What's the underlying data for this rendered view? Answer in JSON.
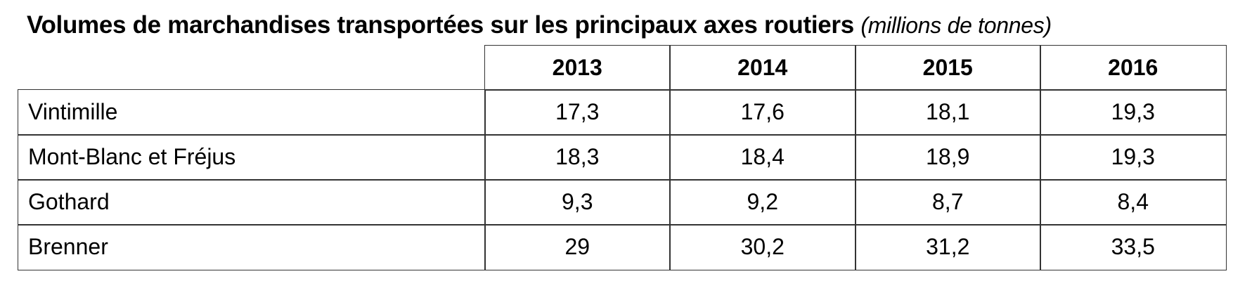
{
  "title": "Volumes de marchandises transportées sur les principaux axes routiers",
  "subtitle": "(millions de tonnes)",
  "table": {
    "columns": [
      "2013",
      "2014",
      "2015",
      "2016"
    ],
    "rows": [
      [
        "Vintimille",
        "17,3",
        "17,6",
        "18,1",
        "19,3"
      ],
      [
        "Mont-Blanc et Fréjus",
        "18,3",
        "18,4",
        "18,9",
        "19,3"
      ],
      [
        "Gothard",
        "9,3",
        "9,2",
        "8,7",
        "8,4"
      ],
      [
        "Brenner",
        "29",
        "30,2",
        "31,2",
        "33,5"
      ]
    ]
  }
}
